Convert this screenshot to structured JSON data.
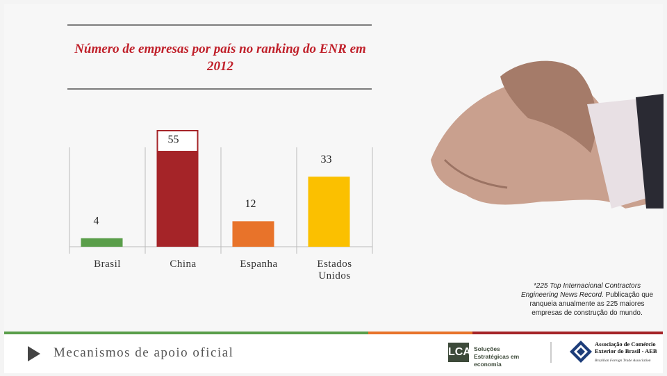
{
  "chart_data": {
    "type": "bar",
    "title": "Número de empresas por país no ranking do ENR em 2012",
    "categories": [
      "Brasil",
      "China",
      "Espanha",
      "Estados Unidos"
    ],
    "values": [
      4,
      55,
      12,
      33
    ],
    "colors": [
      "#5a9e4a",
      "#a52428",
      "#e8732a",
      "#fbc000"
    ]
  },
  "note": {
    "source": "*225 Top Internacional Contractors Engineering News Record.",
    "description": "Publicação que ranqueia anualmente as 225 maiores empresas de construção do mundo."
  },
  "footer": {
    "title": "Mecanismos de apoio oficial",
    "logos": [
      {
        "name": "LCA",
        "tagline": "Soluções Estratégicas em economia"
      },
      {
        "name": "Associação de Comércio Exterior do Brasil - AEB",
        "tagline": "Brazilian Foreign Trade Association"
      }
    ]
  }
}
